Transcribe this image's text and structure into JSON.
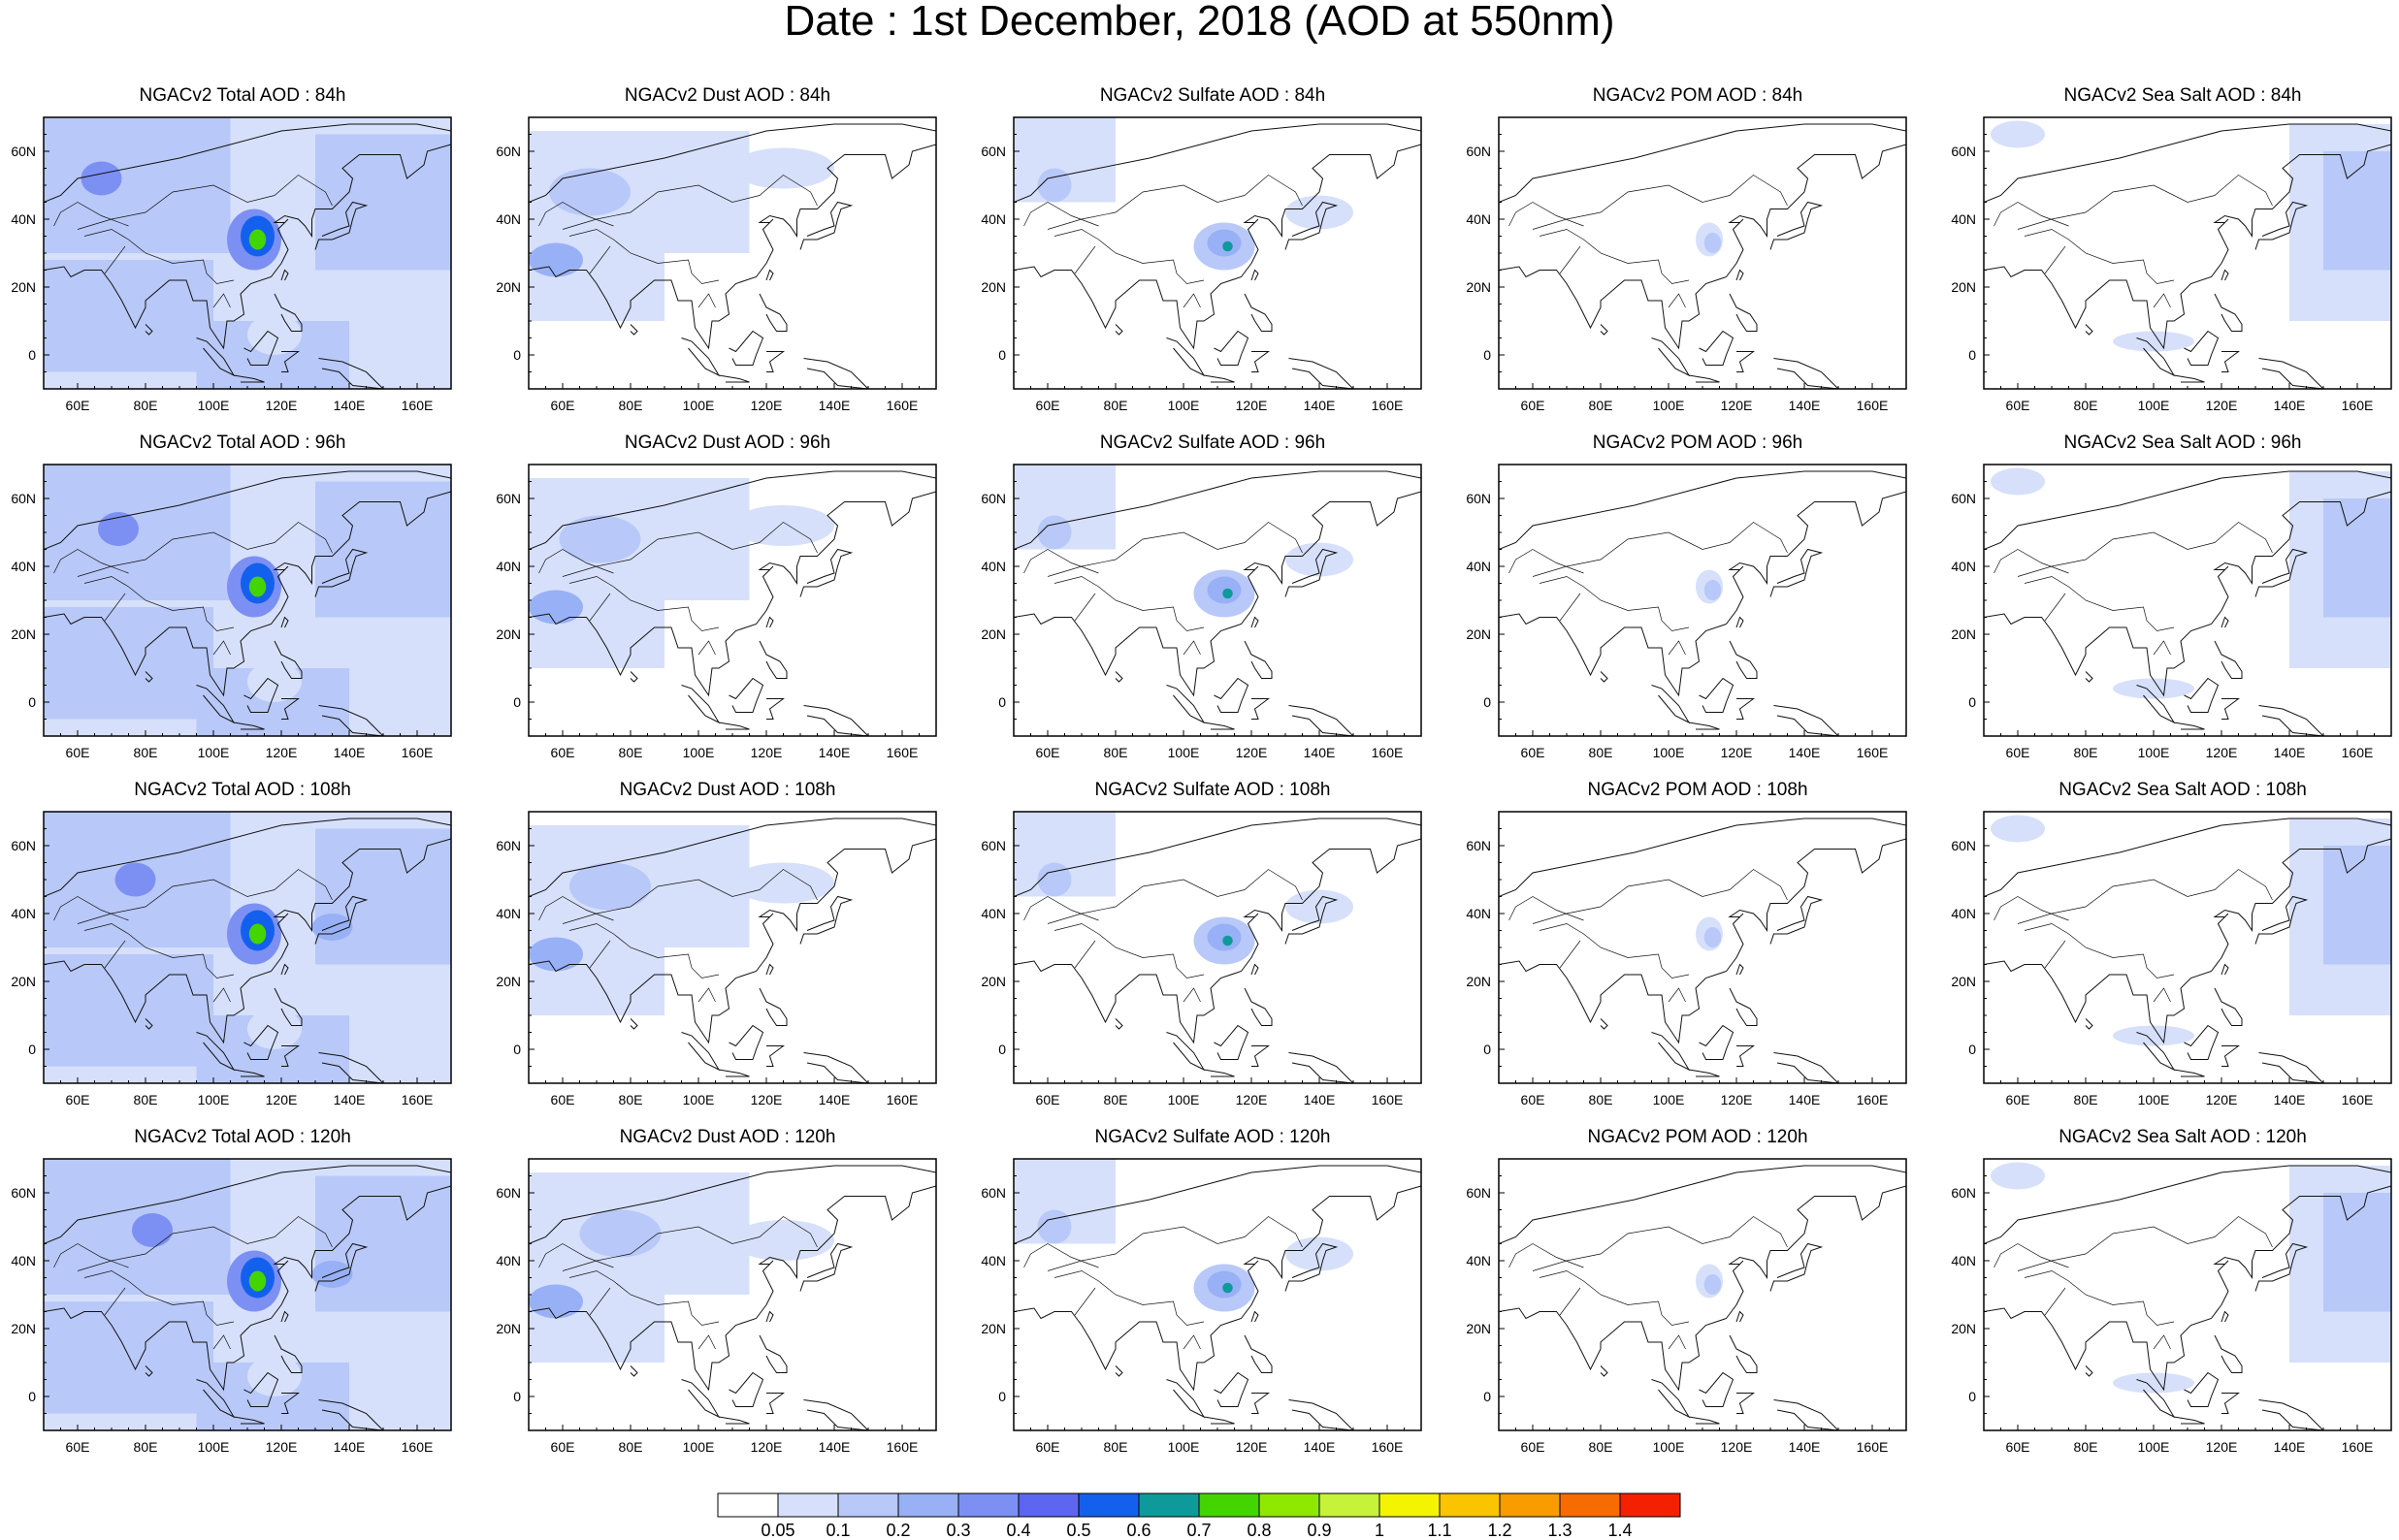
{
  "title": "Date : 1st December, 2018 (AOD at 550nm)",
  "axes": {
    "lon_ticks": [
      "60E",
      "80E",
      "100E",
      "120E",
      "140E",
      "160E"
    ],
    "lat_ticks": [
      "60N",
      "40N",
      "20N",
      "0"
    ]
  },
  "panels": [
    {
      "title": "NGACv2 Total AOD : 84h",
      "species": "total",
      "hour": 84
    },
    {
      "title": "NGACv2 Dust AOD : 84h",
      "species": "dust",
      "hour": 84
    },
    {
      "title": "NGACv2 Sulfate AOD : 84h",
      "species": "sulfate",
      "hour": 84
    },
    {
      "title": "NGACv2 POM AOD : 84h",
      "species": "pom",
      "hour": 84
    },
    {
      "title": "NGACv2 Sea Salt AOD : 84h",
      "species": "seasalt",
      "hour": 84
    },
    {
      "title": "NGACv2 Total AOD : 96h",
      "species": "total",
      "hour": 96
    },
    {
      "title": "NGACv2 Dust AOD : 96h",
      "species": "dust",
      "hour": 96
    },
    {
      "title": "NGACv2 Sulfate AOD : 96h",
      "species": "sulfate",
      "hour": 96
    },
    {
      "title": "NGACv2 POM AOD : 96h",
      "species": "pom",
      "hour": 96
    },
    {
      "title": "NGACv2 Sea Salt AOD : 96h",
      "species": "seasalt",
      "hour": 96
    },
    {
      "title": "NGACv2 Total AOD : 108h",
      "species": "total",
      "hour": 108
    },
    {
      "title": "NGACv2 Dust AOD : 108h",
      "species": "dust",
      "hour": 108
    },
    {
      "title": "NGACv2 Sulfate AOD : 108h",
      "species": "sulfate",
      "hour": 108
    },
    {
      "title": "NGACv2 POM AOD : 108h",
      "species": "pom",
      "hour": 108
    },
    {
      "title": "NGACv2 Sea Salt AOD : 108h",
      "species": "seasalt",
      "hour": 108
    },
    {
      "title": "NGACv2 Total AOD : 120h",
      "species": "total",
      "hour": 120
    },
    {
      "title": "NGACv2 Dust AOD : 120h",
      "species": "dust",
      "hour": 120
    },
    {
      "title": "NGACv2 Sulfate AOD : 120h",
      "species": "sulfate",
      "hour": 120
    },
    {
      "title": "NGACv2 POM AOD : 120h",
      "species": "pom",
      "hour": 120
    },
    {
      "title": "NGACv2 Sea Salt  AOD : 120h",
      "species": "seasalt",
      "hour": 120
    }
  ],
  "colorbar": {
    "labels": [
      "0.05",
      "0.1",
      "0.2",
      "0.3",
      "0.4",
      "0.5",
      "0.6",
      "0.7",
      "0.8",
      "0.9",
      "1",
      "1.1",
      "1.2",
      "1.3",
      "1.4"
    ],
    "colors": [
      "#ffffff",
      "#d6e0fb",
      "#b8c8f8",
      "#98b0f5",
      "#7c90f3",
      "#5c66f0",
      "#1460ee",
      "#0e9a9a",
      "#44d400",
      "#8fe800",
      "#c6f23a",
      "#f4f400",
      "#fbc400",
      "#f99c00",
      "#f76c00",
      "#f42000"
    ]
  },
  "colors": {
    "coastline": "#111111",
    "frame": "#000000"
  }
}
